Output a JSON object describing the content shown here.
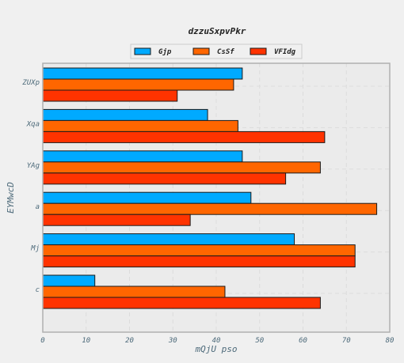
{
  "chart_data": {
    "type": "bar",
    "orientation": "horizontal",
    "title": "dzzuSxpvPkr",
    "xlabel": "mQjU pso",
    "ylabel": "EYMwcD",
    "xlim": [
      0,
      80
    ],
    "xticks": [
      0,
      10,
      20,
      30,
      40,
      50,
      60,
      70,
      80
    ],
    "grid": true,
    "legend_position": "top-center",
    "categories": [
      "ZUXp",
      "Xqa",
      "YAg",
      "a",
      "Mj",
      "c"
    ],
    "series": [
      {
        "name": "Gjp",
        "color": "#00aaff",
        "values": [
          46,
          38,
          46,
          48,
          58,
          12
        ]
      },
      {
        "name": "CsSf",
        "color": "#ff6600",
        "values": [
          44,
          45,
          64,
          77,
          72,
          42
        ]
      },
      {
        "name": "VFIdg",
        "color": "#ff3300",
        "values": [
          31,
          65,
          56,
          34,
          72,
          64
        ]
      }
    ]
  }
}
